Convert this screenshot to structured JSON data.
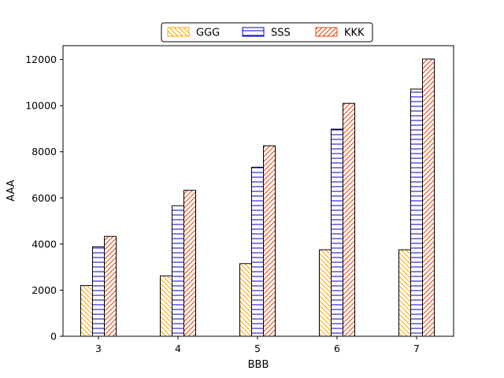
{
  "chart_data": {
    "type": "bar",
    "title": "",
    "xlabel": "BBB",
    "ylabel": "AAA",
    "categories": [
      "3",
      "4",
      "5",
      "6",
      "7"
    ],
    "series": [
      {
        "name": "GGG",
        "values": [
          2200,
          2620,
          3150,
          3750,
          3750
        ],
        "color": "#FFA500",
        "hatch": "diagonal-back"
      },
      {
        "name": "SSS",
        "values": [
          3880,
          5660,
          7330,
          8980,
          10720
        ],
        "color": "#0000CC",
        "hatch": "horizontal"
      },
      {
        "name": "KKK",
        "values": [
          4330,
          6330,
          8260,
          10100,
          12020
        ],
        "color": "#E8400C",
        "hatch": "diagonal-forward"
      }
    ],
    "ylim": [
      0,
      12600
    ],
    "yticks": [
      "0",
      "2000",
      "4000",
      "6000",
      "8000",
      "10000",
      "12000"
    ],
    "legend": {
      "position": "top-center",
      "columns": 3
    },
    "grid": false
  }
}
